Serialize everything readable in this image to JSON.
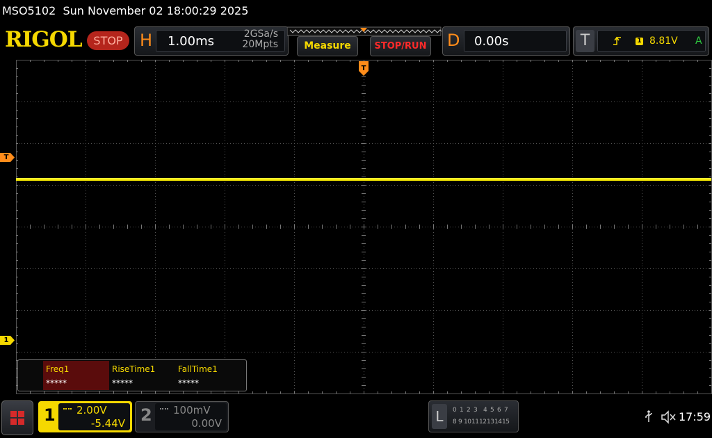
{
  "status_bar": {
    "model": "MSO5102",
    "datetime": "Sun November 02 18:00:29 2025"
  },
  "toolbar": {
    "logo": "RIGOL",
    "run_state": "STOP",
    "horizontal": {
      "label": "H",
      "timebase": "1.00ms",
      "sample_rate": "2GSa/s",
      "memory_depth": "20Mpts"
    },
    "measure_button": "Measure",
    "stop_run_button": "STOP/RUN",
    "delay": {
      "label": "D",
      "value": "0.00s"
    },
    "trigger": {
      "label": "T",
      "source": "1",
      "level": "8.81V",
      "mode": "A"
    }
  },
  "screen": {
    "trigger_position_marker": "T",
    "trigger_level_marker": "T",
    "channel1_marker": "1"
  },
  "measurements": [
    {
      "name": "Freq1",
      "value": "*****"
    },
    {
      "name": "RiseTime1",
      "value": "*****"
    },
    {
      "name": "FallTime1",
      "value": "*****"
    }
  ],
  "channels": [
    {
      "number": "1",
      "scale": "2.00V",
      "offset": "-5.44V"
    },
    {
      "number": "2",
      "scale": "100mV",
      "offset": "0.00V"
    }
  ],
  "logic": {
    "label": "L",
    "row1": [
      "0",
      "1",
      "2",
      "3",
      "4",
      "5",
      "6",
      "7"
    ],
    "row2": [
      "8",
      "9",
      "10",
      "11",
      "12",
      "13",
      "14",
      "15"
    ]
  },
  "clock": "17:59"
}
